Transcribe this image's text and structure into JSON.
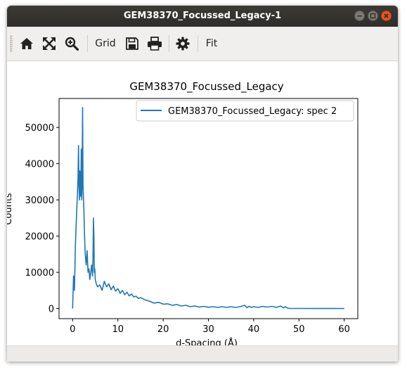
{
  "window": {
    "title": "GEM38370_Focussed_Legacy-1"
  },
  "toolbar": {
    "home_icon": "home-icon",
    "pan_icon": "pan-arrows-icon",
    "zoom_icon": "zoom-icon",
    "grid_label": "Grid",
    "save_icon": "save-icon",
    "print_icon": "print-icon",
    "settings_icon": "gear-icon",
    "fit_label": "Fit"
  },
  "chart_data": {
    "type": "line",
    "title": "GEM38370_Focussed_Legacy",
    "xlabel": "d-Spacing (Å)",
    "ylabel": "Counts",
    "xlim": [
      -3,
      63
    ],
    "ylim": [
      -2800,
      58000
    ],
    "xticks": [
      0,
      10,
      20,
      30,
      40,
      50,
      60
    ],
    "yticks": [
      0,
      10000,
      20000,
      30000,
      40000,
      50000
    ],
    "ytick_labels": [
      "0",
      "10000",
      "20000",
      "30000",
      "40000",
      "50000"
    ],
    "legend": {
      "placement": "top-right"
    },
    "color": "#1f77b4",
    "series": [
      {
        "name": "GEM38370_Focussed_Legacy: spec 2",
        "x": [
          0.0,
          0.2,
          0.4,
          0.6,
          0.8,
          1.0,
          1.2,
          1.3,
          1.4,
          1.5,
          1.6,
          1.7,
          1.8,
          1.9,
          2.0,
          2.1,
          2.2,
          2.3,
          2.4,
          2.5,
          2.6,
          2.7,
          2.8,
          3.0,
          3.2,
          3.4,
          3.6,
          3.8,
          4.0,
          4.2,
          4.4,
          4.5,
          4.6,
          4.7,
          4.8,
          4.9,
          5.0,
          5.2,
          5.5,
          6.0,
          6.5,
          7.0,
          7.5,
          8.0,
          8.5,
          9.0,
          9.5,
          10.0,
          10.5,
          11.0,
          11.5,
          12.0,
          12.5,
          13.0,
          13.5,
          14.0,
          14.5,
          15.0,
          16.0,
          17.0,
          18.0,
          19.0,
          20.0,
          21.0,
          22.0,
          23.0,
          24.0,
          25.0,
          26.0,
          27.0,
          28.0,
          29.0,
          30.0,
          31.0,
          32.0,
          33.0,
          34.0,
          35.0,
          36.0,
          37.0,
          38.0,
          38.5,
          39.0,
          39.5,
          40.0,
          41.0,
          42.0,
          43.0,
          44.0,
          45.0,
          46.0,
          46.5,
          47.0,
          47.5,
          48.0,
          50.0,
          55.0,
          60.0
        ],
        "y": [
          0,
          9000,
          5000,
          17000,
          24000,
          30000,
          36000,
          45000,
          34000,
          30000,
          38000,
          33000,
          31000,
          44000,
          30000,
          35000,
          55500,
          34000,
          30000,
          27000,
          21000,
          18000,
          15000,
          12000,
          16000,
          10000,
          11000,
          8000,
          10000,
          12000,
          9000,
          14000,
          25000,
          20000,
          10000,
          11000,
          8000,
          7000,
          6000,
          6500,
          5000,
          7500,
          6000,
          6800,
          5200,
          6200,
          4800,
          5500,
          4200,
          5000,
          3800,
          4500,
          3500,
          4000,
          3200,
          3400,
          2800,
          3000,
          2400,
          2000,
          1500,
          1700,
          1200,
          1300,
          900,
          1100,
          700,
          900,
          500,
          700,
          400,
          600,
          350,
          500,
          300,
          500,
          300,
          500,
          300,
          500,
          900,
          250,
          600,
          300,
          500,
          300,
          600,
          400,
          600,
          300,
          700,
          200,
          500,
          80,
          20,
          10,
          5,
          0
        ]
      }
    ]
  }
}
